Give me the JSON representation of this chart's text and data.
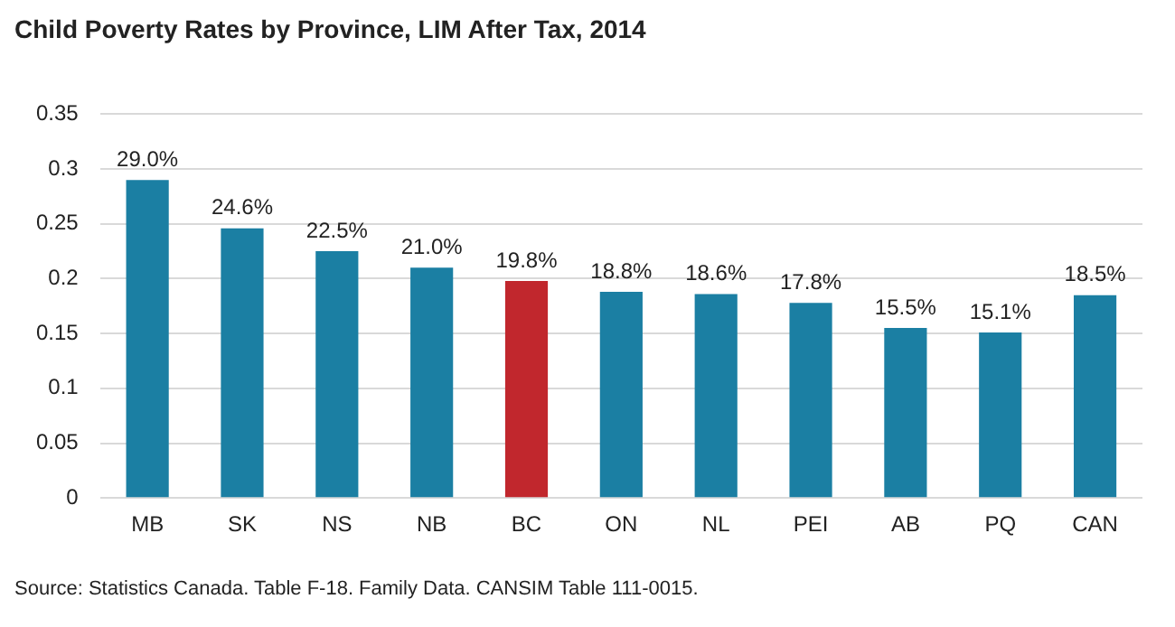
{
  "chart_data": {
    "type": "bar",
    "title": "Child Poverty Rates by Province, LIM After Tax, 2014",
    "categories": [
      "MB",
      "SK",
      "NS",
      "NB",
      "BC",
      "ON",
      "NL",
      "PEI",
      "AB",
      "PQ",
      "CAN"
    ],
    "values": [
      0.29,
      0.246,
      0.225,
      0.21,
      0.198,
      0.188,
      0.186,
      0.178,
      0.155,
      0.151,
      0.185
    ],
    "value_labels": [
      "29.0%",
      "24.6%",
      "22.5%",
      "21.0%",
      "19.8%",
      "18.8%",
      "18.6%",
      "17.8%",
      "15.5%",
      "15.1%",
      "18.5%"
    ],
    "colors": [
      "#1b7fa3",
      "#1b7fa3",
      "#1b7fa3",
      "#1b7fa3",
      "#c1272d",
      "#1b7fa3",
      "#1b7fa3",
      "#1b7fa3",
      "#1b7fa3",
      "#1b7fa3",
      "#1b7fa3"
    ],
    "ylim": [
      0,
      0.35
    ],
    "yticks": [
      0,
      0.05,
      0.1,
      0.15,
      0.2,
      0.25,
      0.3,
      0.35
    ],
    "grid": "y",
    "legend": false,
    "annotations": [
      "Source: Statistics Canada. Table F-18. Family Data. CANSIM Table 111-0015."
    ]
  }
}
